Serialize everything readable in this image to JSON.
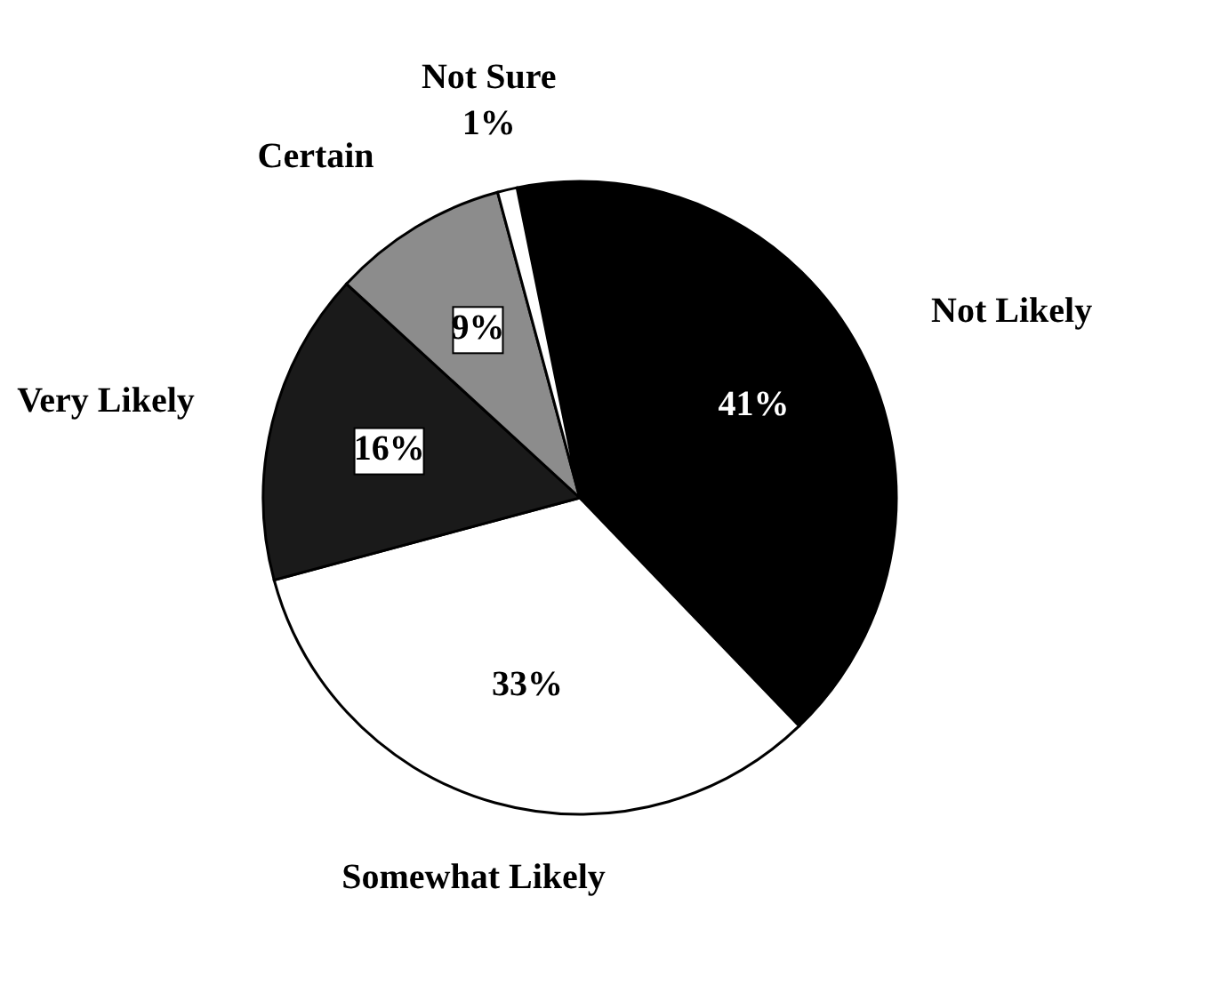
{
  "chart_data": {
    "type": "pie",
    "categories": [
      "Not Likely",
      "Somewhat Likely",
      "Very Likely",
      "Certain",
      "Not Sure"
    ],
    "values": [
      41,
      33,
      16,
      9,
      1
    ],
    "colors": [
      "#000000",
      "#ffffff",
      "#1a1a1a",
      "#8c8c8c",
      "#ffffff"
    ],
    "value_labels": [
      "41%",
      "33%",
      "16%",
      "9%",
      "1%"
    ]
  }
}
